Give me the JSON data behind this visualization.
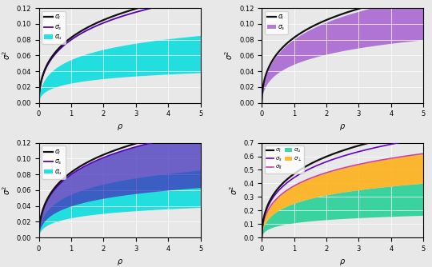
{
  "rho_max": 5.0,
  "n_points": 500,
  "bg_color": "#e8e8e8",
  "plot_bg": "#e8e8e8",
  "grid_color": "#ffffff",
  "grid_lw": 0.5,
  "tl": {
    "sig_I": {
      "a": 0.114,
      "b": 0.38
    },
    "sig_s": {
      "a": 0.111,
      "b": 0.39
    },
    "sig_u_lo": {
      "a": 0.04,
      "b": 0.6
    },
    "sig_u_hi": {
      "a": 0.085,
      "b": 0.55
    },
    "color_I": "#111111",
    "color_s": "#5500bb",
    "color_u": "#00dddd",
    "ylim": [
      0.0,
      0.12
    ]
  },
  "tr": {
    "sig_I": {
      "a": 0.114,
      "b": 0.38
    },
    "sig_s_lo": {
      "a": 0.07,
      "b": 0.43
    },
    "sig_s_hi": {
      "a": 0.112,
      "b": 0.39
    },
    "color_I": "#111111",
    "color_s": "#9944cc",
    "ylim": [
      0.0,
      0.12
    ]
  },
  "bl": {
    "sig_I": {
      "a": 0.114,
      "b": 0.38
    },
    "sig_s": {
      "a": 0.111,
      "b": 0.39
    },
    "sig_s_lo": {
      "a": 0.06,
      "b": 0.5
    },
    "sig_u_lo": {
      "a": 0.04,
      "b": 0.6
    },
    "sig_u_hi": {
      "a": 0.085,
      "b": 0.55
    },
    "color_I": "#111111",
    "color_s": "#5500bb",
    "color_band": "#4433bb",
    "color_u": "#00dddd",
    "ylim": [
      0.0,
      0.12
    ]
  },
  "br": {
    "sig_I": {
      "a": 0.65,
      "b": 0.38
    },
    "sig_s": {
      "a": 0.62,
      "b": 0.4
    },
    "sig_II": {
      "a": 0.55,
      "b": 0.44
    },
    "sig_perp_lo": {
      "a": 0.38,
      "b": 0.5
    },
    "sig_perp_hi": {
      "a": 0.55,
      "b": 0.44
    },
    "sig_u_lo": {
      "a": 0.18,
      "b": 0.65
    },
    "sig_u_hi": {
      "a": 0.38,
      "b": 0.5
    },
    "color_I": "#111111",
    "color_s": "#6600cc",
    "color_II": "#cc44aa",
    "color_perp": "#ffaa00",
    "color_u": "#00cc88",
    "ylim": [
      0.0,
      0.7
    ]
  }
}
